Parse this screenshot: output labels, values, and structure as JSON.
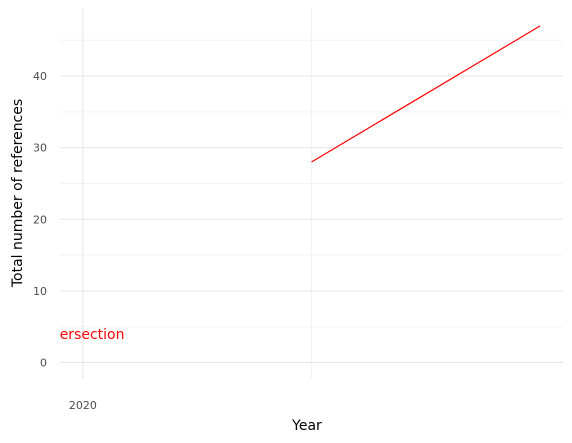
{
  "chart_data": {
    "type": "line",
    "title": "",
    "xlabel": "Year",
    "ylabel": "Total number of references",
    "xlim": [
      2019.95,
      2021.05
    ],
    "ylim": [
      -2.3,
      49.5
    ],
    "x_ticks": [
      2020
    ],
    "x_tick_labels": [
      "2020"
    ],
    "y_ticks": [
      0,
      10,
      20,
      30,
      40
    ],
    "y_tick_labels": [
      "0",
      "10",
      "20",
      "30",
      "40"
    ],
    "grid": true,
    "legend": "none",
    "series": [
      {
        "color": "#ff0000",
        "x": [
          2020.5,
          2021.0
        ],
        "y": [
          28,
          47
        ]
      }
    ],
    "annotations": [
      {
        "text": "Intersection",
        "x": 2020,
        "y": 4,
        "color": "#ff0000"
      }
    ],
    "colors": {
      "grid_major": "#e5e5e5",
      "grid_minor": "#f3f3f3",
      "text": "#4d4d4d"
    }
  }
}
